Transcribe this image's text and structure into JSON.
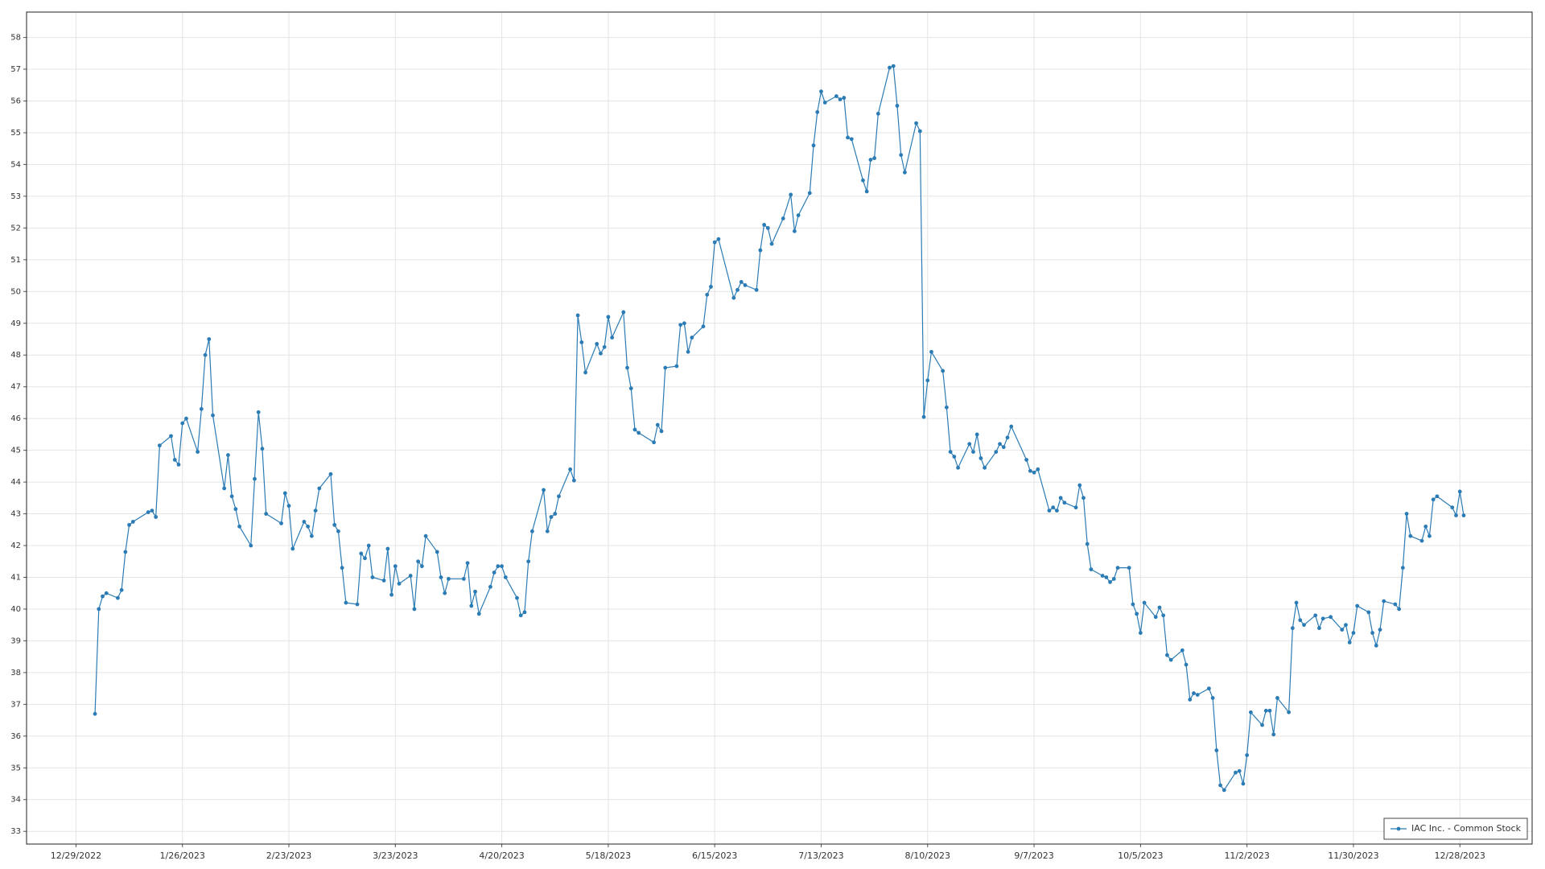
{
  "chart_data": {
    "type": "line",
    "x": [
      "1/3/2023",
      "1/4/2023",
      "1/5/2023",
      "1/6/2023",
      "1/9/2023",
      "1/10/2023",
      "1/11/2023",
      "1/12/2023",
      "1/13/2023",
      "1/17/2023",
      "1/18/2023",
      "1/19/2023",
      "1/20/2023",
      "1/23/2023",
      "1/24/2023",
      "1/25/2023",
      "1/26/2023",
      "1/27/2023",
      "1/30/2023",
      "1/31/2023",
      "2/1/2023",
      "2/2/2023",
      "2/3/2023",
      "2/6/2023",
      "2/7/2023",
      "2/8/2023",
      "2/9/2023",
      "2/10/2023",
      "2/13/2023",
      "2/14/2023",
      "2/15/2023",
      "2/16/2023",
      "2/17/2023",
      "2/21/2023",
      "2/22/2023",
      "2/23/2023",
      "2/24/2023",
      "2/27/2023",
      "2/28/2023",
      "3/1/2023",
      "3/2/2023",
      "3/3/2023",
      "3/6/2023",
      "3/7/2023",
      "3/8/2023",
      "3/9/2023",
      "3/10/2023",
      "3/13/2023",
      "3/14/2023",
      "3/15/2023",
      "3/16/2023",
      "3/17/2023",
      "3/20/2023",
      "3/21/2023",
      "3/22/2023",
      "3/23/2023",
      "3/24/2023",
      "3/27/2023",
      "3/28/2023",
      "3/29/2023",
      "3/30/2023",
      "3/31/2023",
      "4/3/2023",
      "4/4/2023",
      "4/5/2023",
      "4/6/2023",
      "4/10/2023",
      "4/11/2023",
      "4/12/2023",
      "4/13/2023",
      "4/14/2023",
      "4/17/2023",
      "4/18/2023",
      "4/19/2023",
      "4/20/2023",
      "4/21/2023",
      "4/24/2023",
      "4/25/2023",
      "4/26/2023",
      "4/27/2023",
      "4/28/2023",
      "5/1/2023",
      "5/2/2023",
      "5/3/2023",
      "5/4/2023",
      "5/5/2023",
      "5/8/2023",
      "5/9/2023",
      "5/10/2023",
      "5/11/2023",
      "5/12/2023",
      "5/15/2023",
      "5/16/2023",
      "5/17/2023",
      "5/18/2023",
      "5/19/2023",
      "5/22/2023",
      "5/23/2023",
      "5/24/2023",
      "5/25/2023",
      "5/26/2023",
      "5/30/2023",
      "5/31/2023",
      "6/1/2023",
      "6/2/2023",
      "6/5/2023",
      "6/6/2023",
      "6/7/2023",
      "6/8/2023",
      "6/9/2023",
      "6/12/2023",
      "6/13/2023",
      "6/14/2023",
      "6/15/2023",
      "6/16/2023",
      "6/20/2023",
      "6/21/2023",
      "6/22/2023",
      "6/23/2023",
      "6/26/2023",
      "6/27/2023",
      "6/28/2023",
      "6/29/2023",
      "6/30/2023",
      "7/3/2023",
      "7/5/2023",
      "7/6/2023",
      "7/7/2023",
      "7/10/2023",
      "7/11/2023",
      "7/12/2023",
      "7/13/2023",
      "7/14/2023",
      "7/17/2023",
      "7/18/2023",
      "7/19/2023",
      "7/20/2023",
      "7/21/2023",
      "7/24/2023",
      "7/25/2023",
      "7/26/2023",
      "7/27/2023",
      "7/28/2023",
      "7/31/2023",
      "8/1/2023",
      "8/2/2023",
      "8/3/2023",
      "8/4/2023",
      "8/7/2023",
      "8/8/2023",
      "8/9/2023",
      "8/10/2023",
      "8/11/2023",
      "8/14/2023",
      "8/15/2023",
      "8/16/2023",
      "8/17/2023",
      "8/18/2023",
      "8/21/2023",
      "8/22/2023",
      "8/23/2023",
      "8/24/2023",
      "8/25/2023",
      "8/28/2023",
      "8/29/2023",
      "8/30/2023",
      "8/31/2023",
      "9/1/2023",
      "9/5/2023",
      "9/6/2023",
      "9/7/2023",
      "9/8/2023",
      "9/11/2023",
      "9/12/2023",
      "9/13/2023",
      "9/14/2023",
      "9/15/2023",
      "9/18/2023",
      "9/19/2023",
      "9/20/2023",
      "9/21/2023",
      "9/22/2023",
      "9/25/2023",
      "9/26/2023",
      "9/27/2023",
      "9/28/2023",
      "9/29/2023",
      "10/2/2023",
      "10/3/2023",
      "10/4/2023",
      "10/5/2023",
      "10/6/2023",
      "10/9/2023",
      "10/10/2023",
      "10/11/2023",
      "10/12/2023",
      "10/13/2023",
      "10/16/2023",
      "10/17/2023",
      "10/18/2023",
      "10/19/2023",
      "10/20/2023",
      "10/23/2023",
      "10/24/2023",
      "10/25/2023",
      "10/26/2023",
      "10/27/2023",
      "10/30/2023",
      "10/31/2023",
      "11/1/2023",
      "11/2/2023",
      "11/3/2023",
      "11/6/2023",
      "11/7/2023",
      "11/8/2023",
      "11/9/2023",
      "11/10/2023",
      "11/13/2023",
      "11/14/2023",
      "11/15/2023",
      "11/16/2023",
      "11/17/2023",
      "11/20/2023",
      "11/21/2023",
      "11/22/2023",
      "11/24/2023",
      "11/27/2023",
      "11/28/2023",
      "11/29/2023",
      "11/30/2023",
      "12/1/2023",
      "12/4/2023",
      "12/5/2023",
      "12/6/2023",
      "12/7/2023",
      "12/8/2023",
      "12/11/2023",
      "12/12/2023",
      "12/13/2023",
      "12/14/2023",
      "12/15/2023",
      "12/18/2023",
      "12/19/2023",
      "12/20/2023",
      "12/21/2023",
      "12/22/2023",
      "12/26/2023",
      "12/27/2023",
      "12/28/2023",
      "12/29/2023"
    ],
    "series": [
      {
        "name": "IAC Inc. - Common Stock",
        "color": "#2b7bb5",
        "values": [
          36.7,
          40.0,
          40.4,
          40.5,
          40.35,
          40.6,
          41.8,
          42.65,
          42.75,
          43.05,
          43.1,
          42.9,
          45.15,
          45.45,
          44.7,
          44.55,
          45.85,
          46.0,
          44.95,
          46.3,
          48.0,
          48.5,
          46.1,
          43.8,
          44.85,
          43.55,
          43.15,
          42.6,
          42.0,
          44.1,
          46.2,
          45.05,
          43.0,
          42.7,
          43.65,
          43.25,
          41.9,
          42.75,
          42.6,
          42.3,
          43.1,
          43.8,
          44.25,
          42.65,
          42.45,
          41.3,
          40.2,
          40.15,
          41.75,
          41.6,
          42.0,
          41.0,
          40.9,
          41.9,
          40.45,
          41.35,
          40.8,
          41.05,
          40.0,
          41.5,
          41.35,
          42.3,
          41.8,
          41.0,
          40.5,
          40.95,
          40.95,
          41.45,
          40.1,
          40.55,
          39.85,
          40.7,
          41.15,
          41.35,
          41.35,
          41.0,
          40.35,
          39.8,
          39.9,
          41.5,
          42.45,
          43.75,
          42.45,
          42.9,
          43.0,
          43.55,
          44.4,
          44.05,
          49.25,
          48.4,
          47.45,
          48.35,
          48.05,
          48.25,
          49.2,
          48.55,
          49.35,
          47.6,
          46.95,
          45.65,
          45.55,
          45.25,
          45.8,
          45.6,
          47.6,
          47.65,
          48.95,
          49.0,
          48.1,
          48.55,
          48.9,
          49.9,
          50.15,
          51.55,
          51.65,
          49.8,
          50.05,
          50.3,
          50.2,
          50.05,
          51.3,
          52.1,
          52.0,
          51.5,
          52.3,
          53.05,
          51.9,
          52.4,
          53.1,
          54.6,
          55.65,
          56.3,
          55.95,
          56.15,
          56.05,
          56.1,
          54.85,
          54.8,
          53.5,
          53.15,
          54.15,
          54.2,
          55.6,
          57.05,
          57.1,
          55.85,
          54.3,
          53.75,
          55.3,
          55.05,
          46.05,
          47.2,
          48.1,
          47.5,
          46.35,
          44.95,
          44.8,
          44.45,
          45.2,
          44.95,
          45.5,
          44.75,
          44.45,
          44.95,
          45.2,
          45.1,
          45.4,
          45.75,
          44.7,
          44.35,
          44.3,
          44.4,
          43.1,
          43.2,
          43.1,
          43.5,
          43.35,
          43.2,
          43.9,
          43.5,
          42.05,
          41.25,
          41.05,
          41.0,
          40.85,
          40.95,
          41.3,
          41.3,
          40.15,
          39.85,
          39.25,
          40.2,
          39.75,
          40.05,
          39.8,
          38.55,
          38.4,
          38.7,
          38.25,
          37.15,
          37.35,
          37.3,
          37.5,
          37.2,
          35.55,
          34.45,
          34.3,
          34.85,
          34.9,
          34.5,
          35.4,
          36.75,
          36.35,
          36.8,
          36.8,
          36.05,
          37.2,
          36.75,
          39.4,
          40.2,
          39.65,
          39.5,
          39.8,
          39.4,
          39.7,
          39.75,
          39.35,
          39.5,
          38.95,
          39.25,
          40.1,
          39.9,
          39.25,
          38.85,
          39.35,
          40.25,
          40.15,
          40.0,
          41.3,
          43.0,
          42.3,
          42.15,
          42.6,
          42.3,
          43.45,
          43.55,
          43.2,
          42.95,
          43.7,
          42.95
        ]
      }
    ],
    "xlim": [
      "12/16/2022",
      "1/16/2024"
    ],
    "xticks": [
      "12/29/2022",
      "1/26/2023",
      "2/23/2023",
      "3/23/2023",
      "4/20/2023",
      "5/18/2023",
      "6/15/2023",
      "7/13/2023",
      "8/10/2023",
      "9/7/2023",
      "10/5/2023",
      "11/2/2023",
      "11/30/2023",
      "12/28/2023"
    ],
    "ylim": [
      32.6,
      58.8
    ],
    "yticks": [
      33,
      34,
      35,
      36,
      37,
      38,
      39,
      40,
      41,
      42,
      43,
      44,
      45,
      46,
      47,
      48,
      49,
      50,
      51,
      52,
      53,
      54,
      55,
      56,
      57,
      58
    ],
    "grid": true,
    "legend": "lower right"
  }
}
